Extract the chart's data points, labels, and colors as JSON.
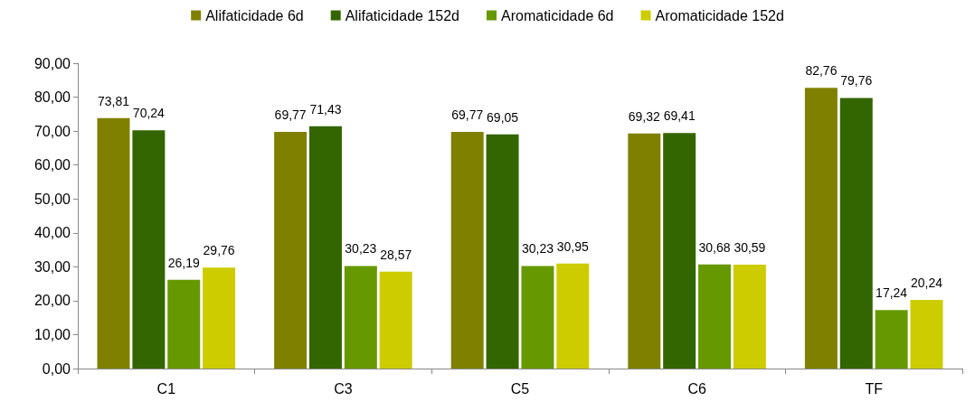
{
  "chart_data": {
    "type": "bar",
    "categories": [
      "C1",
      "C3",
      "C5",
      "C6",
      "TF"
    ],
    "series": [
      {
        "name": "Alifaticidade 6d",
        "color": "#808000",
        "values": [
          73.81,
          69.77,
          69.77,
          69.32,
          82.76
        ],
        "value_labels": [
          "73,81",
          "69,77",
          "69,77",
          "69,32",
          "82,76"
        ]
      },
      {
        "name": "Alifaticidade 152d",
        "color": "#336600",
        "values": [
          70.24,
          71.43,
          69.05,
          69.41,
          79.76
        ],
        "value_labels": [
          "70,24",
          "71,43",
          "69,05",
          "69,41",
          "79,76"
        ]
      },
      {
        "name": "Aromaticidade 6d",
        "color": "#669900",
        "values": [
          26.19,
          30.23,
          30.23,
          30.68,
          17.24
        ],
        "value_labels": [
          "26,19",
          "30,23",
          "30,23",
          "30,68",
          "17,24"
        ]
      },
      {
        "name": "Aromaticidade 152d",
        "color": "#cccc00",
        "values": [
          29.76,
          28.57,
          30.95,
          30.59,
          20.24
        ],
        "value_labels": [
          "29,76",
          "28,57",
          "30,95",
          "30,59",
          "20,24"
        ]
      }
    ],
    "ylim": [
      0,
      90
    ],
    "yticks": [
      {
        "value": 0,
        "label": "0,00"
      },
      {
        "value": 10,
        "label": "10,00"
      },
      {
        "value": 20,
        "label": "20,00"
      },
      {
        "value": 30,
        "label": "30,00"
      },
      {
        "value": 40,
        "label": "40,00"
      },
      {
        "value": 50,
        "label": "50,00"
      },
      {
        "value": 60,
        "label": "60,00"
      },
      {
        "value": 70,
        "label": "70,00"
      },
      {
        "value": 80,
        "label": "80,00"
      },
      {
        "value": 90,
        "label": "90,00"
      }
    ],
    "grid": false,
    "legend": "top"
  }
}
